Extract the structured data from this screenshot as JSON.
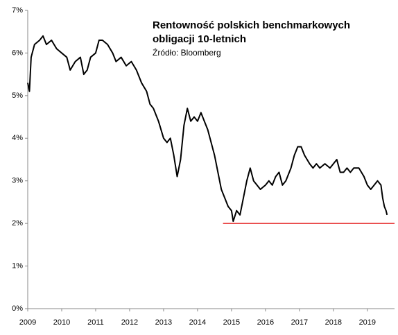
{
  "chart_data": {
    "type": "line",
    "title": [
      "Rentowność polskich benchmarkowych",
      "obligacji 10-letnich"
    ],
    "subtitle": "Źródło: Bloomberg",
    "xlim": [
      2009,
      2019.8
    ],
    "xticks": [
      2009,
      2010,
      2011,
      2012,
      2013,
      2014,
      2015,
      2016,
      2017,
      2018,
      2019
    ],
    "ylim": [
      0,
      7
    ],
    "yticks": [
      {
        "value": 0,
        "label": "0%"
      },
      {
        "value": 1,
        "label": "1%"
      },
      {
        "value": 2,
        "label": "2%"
      },
      {
        "value": 3,
        "label": "3%"
      },
      {
        "value": 4,
        "label": "4%"
      },
      {
        "value": 5,
        "label": "5%"
      },
      {
        "value": 6,
        "label": "6%"
      },
      {
        "value": 7,
        "label": "7%"
      }
    ],
    "grid": false,
    "x": [
      2009.0,
      2009.05,
      2009.1,
      2009.2,
      2009.35,
      2009.45,
      2009.55,
      2009.7,
      2009.85,
      2010.0,
      2010.15,
      2010.25,
      2010.4,
      2010.55,
      2010.65,
      2010.75,
      2010.85,
      2011.0,
      2011.1,
      2011.2,
      2011.35,
      2011.5,
      2011.6,
      2011.75,
      2011.9,
      2012.05,
      2012.2,
      2012.35,
      2012.5,
      2012.6,
      2012.7,
      2012.85,
      2013.0,
      2013.1,
      2013.2,
      2013.3,
      2013.4,
      2013.5,
      2013.6,
      2013.7,
      2013.8,
      2013.9,
      2014.0,
      2014.1,
      2014.2,
      2014.3,
      2014.4,
      2014.5,
      2014.6,
      2014.7,
      2014.8,
      2014.9,
      2015.0,
      2015.05,
      2015.15,
      2015.25,
      2015.35,
      2015.45,
      2015.55,
      2015.65,
      2015.75,
      2015.85,
      2016.0,
      2016.1,
      2016.2,
      2016.3,
      2016.4,
      2016.5,
      2016.6,
      2016.75,
      2016.85,
      2016.95,
      2017.05,
      2017.15,
      2017.3,
      2017.4,
      2017.5,
      2017.6,
      2017.75,
      2017.9,
      2018.0,
      2018.1,
      2018.2,
      2018.3,
      2018.4,
      2018.5,
      2018.6,
      2018.75,
      2018.9,
      2019.0,
      2019.1,
      2019.2,
      2019.3,
      2019.4,
      2019.45,
      2019.5,
      2019.55,
      2019.58
    ],
    "series": [
      {
        "color": "#000000",
        "values": [
          5.3,
          5.1,
          5.9,
          6.2,
          6.3,
          6.4,
          6.2,
          6.3,
          6.1,
          6.0,
          5.9,
          5.6,
          5.8,
          5.9,
          5.5,
          5.6,
          5.9,
          6.0,
          6.3,
          6.3,
          6.2,
          6.0,
          5.8,
          5.9,
          5.7,
          5.8,
          5.6,
          5.3,
          5.1,
          4.8,
          4.7,
          4.4,
          4.0,
          3.9,
          4.0,
          3.6,
          3.1,
          3.5,
          4.3,
          4.7,
          4.4,
          4.5,
          4.4,
          4.6,
          4.4,
          4.2,
          3.9,
          3.6,
          3.2,
          2.8,
          2.6,
          2.4,
          2.3,
          2.05,
          2.3,
          2.2,
          2.6,
          3.0,
          3.3,
          3.0,
          2.9,
          2.8,
          2.9,
          3.0,
          2.9,
          3.1,
          3.2,
          2.9,
          3.0,
          3.3,
          3.6,
          3.8,
          3.8,
          3.6,
          3.4,
          3.3,
          3.4,
          3.3,
          3.4,
          3.3,
          3.4,
          3.5,
          3.2,
          3.2,
          3.3,
          3.2,
          3.3,
          3.3,
          3.1,
          2.9,
          2.8,
          2.9,
          3.0,
          2.9,
          2.6,
          2.4,
          2.3,
          2.2
        ]
      }
    ],
    "reference_line": {
      "value": 2,
      "x": [
        2014.75,
        2019.8
      ],
      "color": "#e00000"
    }
  }
}
